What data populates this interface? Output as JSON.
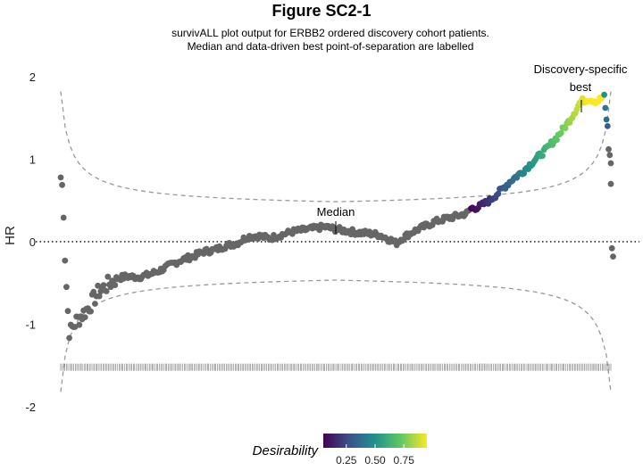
{
  "chart_data": {
    "type": "scatter",
    "title": "Figure SC2-1",
    "subtitle_lines": [
      "survivALL plot output for ERBB2 ordered discovery cohort patients.",
      "Median and data-driven best point-of-separation are labelled"
    ],
    "xlabel": "",
    "ylabel": "HR",
    "ylim": [
      -2.0,
      2.15
    ],
    "xlim": [
      0,
      1
    ],
    "yticks": [
      -2,
      -1,
      0,
      1,
      2
    ],
    "grid": false,
    "reference_line": {
      "y": 0,
      "style": "dotted"
    },
    "legend": {
      "title": "Desirability",
      "placement": "bottom",
      "type": "colorbar",
      "range": [
        0.05,
        0.95
      ],
      "ticks": [
        0.25,
        0.5,
        0.75
      ],
      "tick_labels": [
        "0.25",
        "0.50",
        "0.75"
      ],
      "colors": [
        "#440154",
        "#3b528b",
        "#21918c",
        "#5ec962",
        "#fde725"
      ]
    },
    "annotations": [
      {
        "text_lines": [
          "Median"
        ],
        "x": 0.5,
        "y": 0.13
      },
      {
        "text_lines": [
          "Discovery-specific",
          "best"
        ],
        "x": 0.945,
        "y": 1.82
      }
    ],
    "hr_path": [
      [
        0.0,
        0.78
      ],
      [
        0.004,
        0.62
      ],
      [
        0.008,
        -0.22
      ],
      [
        0.012,
        -0.75
      ],
      [
        0.016,
        -1.12
      ],
      [
        0.02,
        -1.05
      ],
      [
        0.03,
        -0.95
      ],
      [
        0.04,
        -0.88
      ],
      [
        0.05,
        -0.8
      ],
      [
        0.06,
        -0.7
      ],
      [
        0.07,
        -0.6
      ],
      [
        0.08,
        -0.55
      ],
      [
        0.09,
        -0.5
      ],
      [
        0.1,
        -0.45
      ],
      [
        0.12,
        -0.42
      ],
      [
        0.14,
        -0.43
      ],
      [
        0.16,
        -0.4
      ],
      [
        0.18,
        -0.35
      ],
      [
        0.2,
        -0.28
      ],
      [
        0.22,
        -0.22
      ],
      [
        0.24,
        -0.18
      ],
      [
        0.26,
        -0.12
      ],
      [
        0.28,
        -0.1
      ],
      [
        0.3,
        -0.05
      ],
      [
        0.32,
        -0.02
      ],
      [
        0.33,
        0.02
      ],
      [
        0.34,
        0.06
      ],
      [
        0.36,
        0.07
      ],
      [
        0.38,
        0.04
      ],
      [
        0.4,
        0.08
      ],
      [
        0.42,
        0.12
      ],
      [
        0.44,
        0.14
      ],
      [
        0.46,
        0.16
      ],
      [
        0.48,
        0.18
      ],
      [
        0.5,
        0.15
      ],
      [
        0.52,
        0.13
      ],
      [
        0.54,
        0.11
      ],
      [
        0.56,
        0.1
      ],
      [
        0.58,
        0.08
      ],
      [
        0.6,
        0.02
      ],
      [
        0.61,
        -0.02
      ],
      [
        0.62,
        0.04
      ],
      [
        0.64,
        0.12
      ],
      [
        0.66,
        0.18
      ],
      [
        0.68,
        0.24
      ],
      [
        0.7,
        0.28
      ],
      [
        0.72,
        0.31
      ],
      [
        0.74,
        0.35
      ],
      [
        0.745,
        0.4
      ],
      [
        0.76,
        0.42
      ],
      [
        0.78,
        0.5
      ],
      [
        0.8,
        0.62
      ],
      [
        0.82,
        0.75
      ],
      [
        0.84,
        0.85
      ],
      [
        0.86,
        0.98
      ],
      [
        0.88,
        1.1
      ],
      [
        0.9,
        1.25
      ],
      [
        0.92,
        1.42
      ],
      [
        0.935,
        1.58
      ],
      [
        0.945,
        1.7
      ],
      [
        0.96,
        1.73
      ],
      [
        0.975,
        1.7
      ],
      [
        0.985,
        1.75
      ]
    ],
    "desirability_start_x": 0.745,
    "tail_points": [
      {
        "x": 0.988,
        "y": 1.78,
        "d": 0.5
      },
      {
        "x": 0.99,
        "y": 1.62,
        "d": 0.4
      },
      {
        "x": 0.992,
        "y": 1.48,
        "d": 0.35
      },
      {
        "x": 0.994,
        "y": 1.4,
        "d": 0.3
      },
      {
        "x": 0.996,
        "y": 1.12,
        "d": null
      },
      {
        "x": 0.998,
        "y": 1.05,
        "d": null
      },
      {
        "x": 1.0,
        "y": 0.95,
        "d": null
      },
      {
        "x": 1.0,
        "y": 0.7,
        "d": null
      },
      {
        "x": 1.002,
        "y": -0.08,
        "d": null
      },
      {
        "x": 1.004,
        "y": -0.18,
        "d": null
      }
    ],
    "ci_upper": {
      "description": "dashed random-split threshold",
      "center": 0.38,
      "amplitude_near_edges": 1.82
    },
    "ci_lower": {
      "center": -0.36,
      "amplitude_near_edges": -1.82
    },
    "rug_y": -1.52,
    "n_patients": 380
  }
}
